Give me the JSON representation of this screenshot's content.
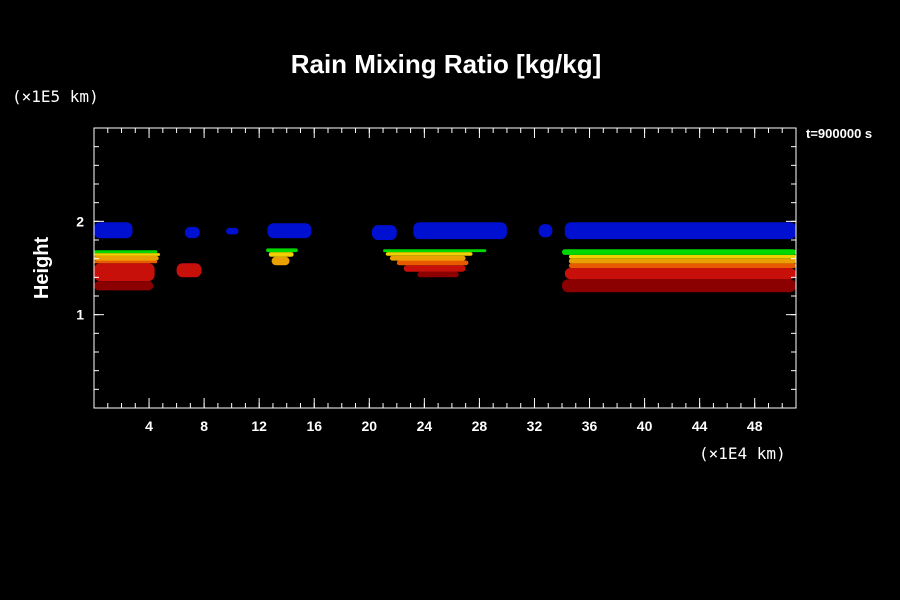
{
  "chart_data": {
    "type": "heatmap",
    "title": "Rain Mixing Ratio [kg/kg]",
    "ylabel": "Height",
    "y_unit": "(×1E5 km)",
    "x_unit": "(×1E4 km)",
    "time_label": "t=900000 s",
    "xlim": [
      0,
      51
    ],
    "ylim": [
      0,
      3
    ],
    "x_ticks": [
      4,
      8,
      12,
      16,
      20,
      24,
      28,
      32,
      36,
      40,
      44,
      48
    ],
    "y_ticks": [
      1,
      2
    ],
    "x_minor_step": 1,
    "y_minor_step": 0.2,
    "colors": {
      "dark_red": "#8b0000",
      "red": "#c8100a",
      "orange": "#e85a00",
      "yellow_orange": "#eaa000",
      "yellow": "#f0d000",
      "green": "#00d800",
      "blue": "#0010d0"
    },
    "regions": [
      {
        "layer": "dark_red",
        "x": [
          0.0,
          4.3
        ],
        "y": [
          1.26,
          1.36
        ]
      },
      {
        "layer": "red",
        "x": [
          0.0,
          4.4
        ],
        "y": [
          1.36,
          1.55
        ]
      },
      {
        "layer": "orange",
        "x": [
          0.0,
          4.6
        ],
        "y": [
          1.55,
          1.58
        ]
      },
      {
        "layer": "yellow_orange",
        "x": [
          0.0,
          4.7
        ],
        "y": [
          1.58,
          1.63
        ]
      },
      {
        "layer": "yellow",
        "x": [
          0.0,
          4.8
        ],
        "y": [
          1.63,
          1.66
        ]
      },
      {
        "layer": "green",
        "x": [
          0.0,
          4.6
        ],
        "y": [
          1.66,
          1.69
        ]
      },
      {
        "layer": "red",
        "x": [
          6.0,
          7.8
        ],
        "y": [
          1.4,
          1.55
        ]
      },
      {
        "layer": "yellow_orange",
        "x": [
          12.9,
          14.2
        ],
        "y": [
          1.53,
          1.62
        ]
      },
      {
        "layer": "yellow",
        "x": [
          12.7,
          14.5
        ],
        "y": [
          1.62,
          1.67
        ]
      },
      {
        "layer": "green",
        "x": [
          12.5,
          14.8
        ],
        "y": [
          1.67,
          1.71
        ]
      },
      {
        "layer": "dark_red",
        "x": [
          23.5,
          26.5
        ],
        "y": [
          1.4,
          1.46
        ]
      },
      {
        "layer": "red",
        "x": [
          22.5,
          27.0
        ],
        "y": [
          1.46,
          1.53
        ]
      },
      {
        "layer": "orange",
        "x": [
          22.0,
          27.2
        ],
        "y": [
          1.53,
          1.58
        ]
      },
      {
        "layer": "yellow_orange",
        "x": [
          21.5,
          27.0
        ],
        "y": [
          1.58,
          1.63
        ]
      },
      {
        "layer": "yellow",
        "x": [
          21.2,
          27.5
        ],
        "y": [
          1.63,
          1.67
        ]
      },
      {
        "layer": "green",
        "x": [
          21.0,
          28.5
        ],
        "y": [
          1.67,
          1.7
        ]
      },
      {
        "layer": "dark_red",
        "x": [
          34.0,
          51.0
        ],
        "y": [
          1.24,
          1.38
        ]
      },
      {
        "layer": "red",
        "x": [
          34.2,
          51.0
        ],
        "y": [
          1.38,
          1.5
        ]
      },
      {
        "layer": "orange",
        "x": [
          34.5,
          51.0
        ],
        "y": [
          1.5,
          1.55
        ]
      },
      {
        "layer": "yellow_orange",
        "x": [
          34.5,
          51.0
        ],
        "y": [
          1.55,
          1.6
        ]
      },
      {
        "layer": "yellow",
        "x": [
          34.5,
          51.0
        ],
        "y": [
          1.6,
          1.64
        ]
      },
      {
        "layer": "green",
        "x": [
          34.0,
          51.0
        ],
        "y": [
          1.64,
          1.7
        ]
      },
      {
        "layer": "blue",
        "x": [
          0.0,
          2.8
        ],
        "y": [
          1.82,
          1.99
        ]
      },
      {
        "layer": "blue",
        "x": [
          6.6,
          7.7
        ],
        "y": [
          1.82,
          1.94
        ]
      },
      {
        "layer": "blue",
        "x": [
          9.6,
          10.5
        ],
        "y": [
          1.86,
          1.93
        ]
      },
      {
        "layer": "blue",
        "x": [
          12.6,
          15.8
        ],
        "y": [
          1.82,
          1.98
        ]
      },
      {
        "layer": "blue",
        "x": [
          20.2,
          22.0
        ],
        "y": [
          1.8,
          1.96
        ]
      },
      {
        "layer": "blue",
        "x": [
          23.2,
          30.0
        ],
        "y": [
          1.81,
          1.99
        ]
      },
      {
        "layer": "blue",
        "x": [
          32.3,
          33.3
        ],
        "y": [
          1.83,
          1.97
        ]
      },
      {
        "layer": "blue",
        "x": [
          34.2,
          51.0
        ],
        "y": [
          1.81,
          1.99
        ]
      }
    ]
  }
}
